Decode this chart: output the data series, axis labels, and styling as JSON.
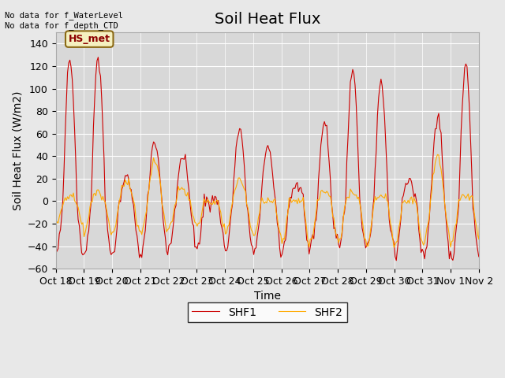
{
  "title": "Soil Heat Flux",
  "ylabel": "Soil Heat Flux (W/m2)",
  "xlabel": "Time",
  "ylim": [
    -60,
    150
  ],
  "yticks": [
    -60,
    -40,
    -20,
    0,
    20,
    40,
    60,
    80,
    100,
    120,
    140
  ],
  "xtick_labels": [
    "Oct 18",
    "Oct 19",
    "Oct 20",
    "Oct 21",
    "Oct 22",
    "Oct 23",
    "Oct 24",
    "Oct 25",
    "Oct 26",
    "Oct 27",
    "Oct 28",
    "Oct 29",
    "Oct 30",
    "Oct 31",
    "Nov 1",
    "Nov 2"
  ],
  "bg_color": "#e8e8e8",
  "plot_bg_color": "#d8d8d8",
  "shf1_color": "#cc0000",
  "shf2_color": "#ffaa00",
  "legend_label1": "SHF1",
  "legend_label2": "SHF2",
  "annotation_text": "No data for f_WaterLevel\nNo data for f_depth_CTD",
  "box_label": "HS_met",
  "title_fontsize": 14,
  "label_fontsize": 10,
  "tick_fontsize": 9
}
